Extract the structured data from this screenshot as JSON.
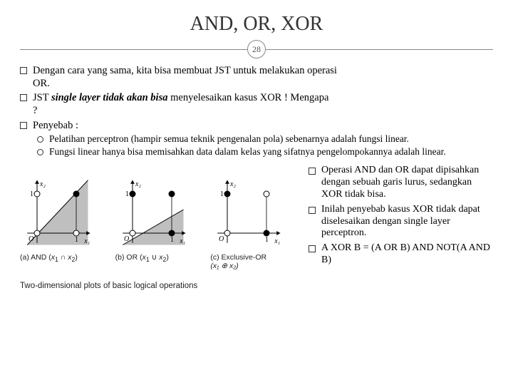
{
  "title": "AND, OR, XOR",
  "page": "28",
  "bullets": {
    "b1a": "Dengan cara yang sama, kita bisa membuat JST untuk melakukan operasi",
    "b1b": "OR.",
    "b2a": "JST ",
    "b2b": "single layer tidak akan bisa",
    "b2c": " menyelesaikan kasus XOR ! Mengapa",
    "b2d": "?",
    "b3": " Penyebab :",
    "s1": "Pelatihan perceptron (hampir semua teknik pengenalan pola) sebenarnya adalah fungsi linear.",
    "s2": "Fungsi linear hanya bisa memisahkan data dalam kelas yang sifatnya pengelompokannya adalah linear."
  },
  "right": {
    "r1": "Operasi AND dan OR dapat dipisahkan dengan sebuah garis lurus, sedangkan XOR tidak bisa.",
    "r2": "Inilah penyebab kasus XOR tidak dapat diselesaikan dengan single layer perceptron.",
    "r3": "A XOR B = (A OR B) AND NOT(A AND B)"
  },
  "figure": {
    "caption": "Two-dimensional plots of basic logical operations",
    "plots": [
      {
        "label_a": "(a) AND (",
        "label_b": "x",
        "label_c": "1",
        "label_d": " ∩ ",
        "label_e": "x",
        "label_f": "2",
        "label_g": ")",
        "shaded": true,
        "line_y1": -0.3,
        "line_y2": 1.35,
        "points": [
          {
            "x": 0,
            "y": 0,
            "fill": false
          },
          {
            "x": 1,
            "y": 0,
            "fill": false
          },
          {
            "x": 0,
            "y": 1,
            "fill": false
          },
          {
            "x": 1,
            "y": 1,
            "fill": true
          }
        ]
      },
      {
        "label_a": "(b) OR (",
        "label_b": "x",
        "label_c": "1",
        "label_d": " ∪ ",
        "label_e": "x",
        "label_f": "2",
        "label_g": ")",
        "shaded": true,
        "line_y1": -0.3,
        "line_y2": 0.6,
        "points": [
          {
            "x": 0,
            "y": 0,
            "fill": false
          },
          {
            "x": 1,
            "y": 0,
            "fill": true
          },
          {
            "x": 0,
            "y": 1,
            "fill": true
          },
          {
            "x": 1,
            "y": 1,
            "fill": true
          }
        ]
      },
      {
        "label_a": "(c) Exclusive-OR",
        "label2": "(x₁ ⊕ x₂)",
        "shaded": false,
        "points": [
          {
            "x": 0,
            "y": 0,
            "fill": false
          },
          {
            "x": 1,
            "y": 0,
            "fill": true
          },
          {
            "x": 0,
            "y": 1,
            "fill": true
          },
          {
            "x": 1,
            "y": 1,
            "fill": false
          }
        ]
      }
    ],
    "axis_color": "#000000",
    "point_stroke": "#000000",
    "point_fill": "#000000",
    "shade_color": "#bfbfbf",
    "grid_size": 100,
    "unit": 55
  }
}
